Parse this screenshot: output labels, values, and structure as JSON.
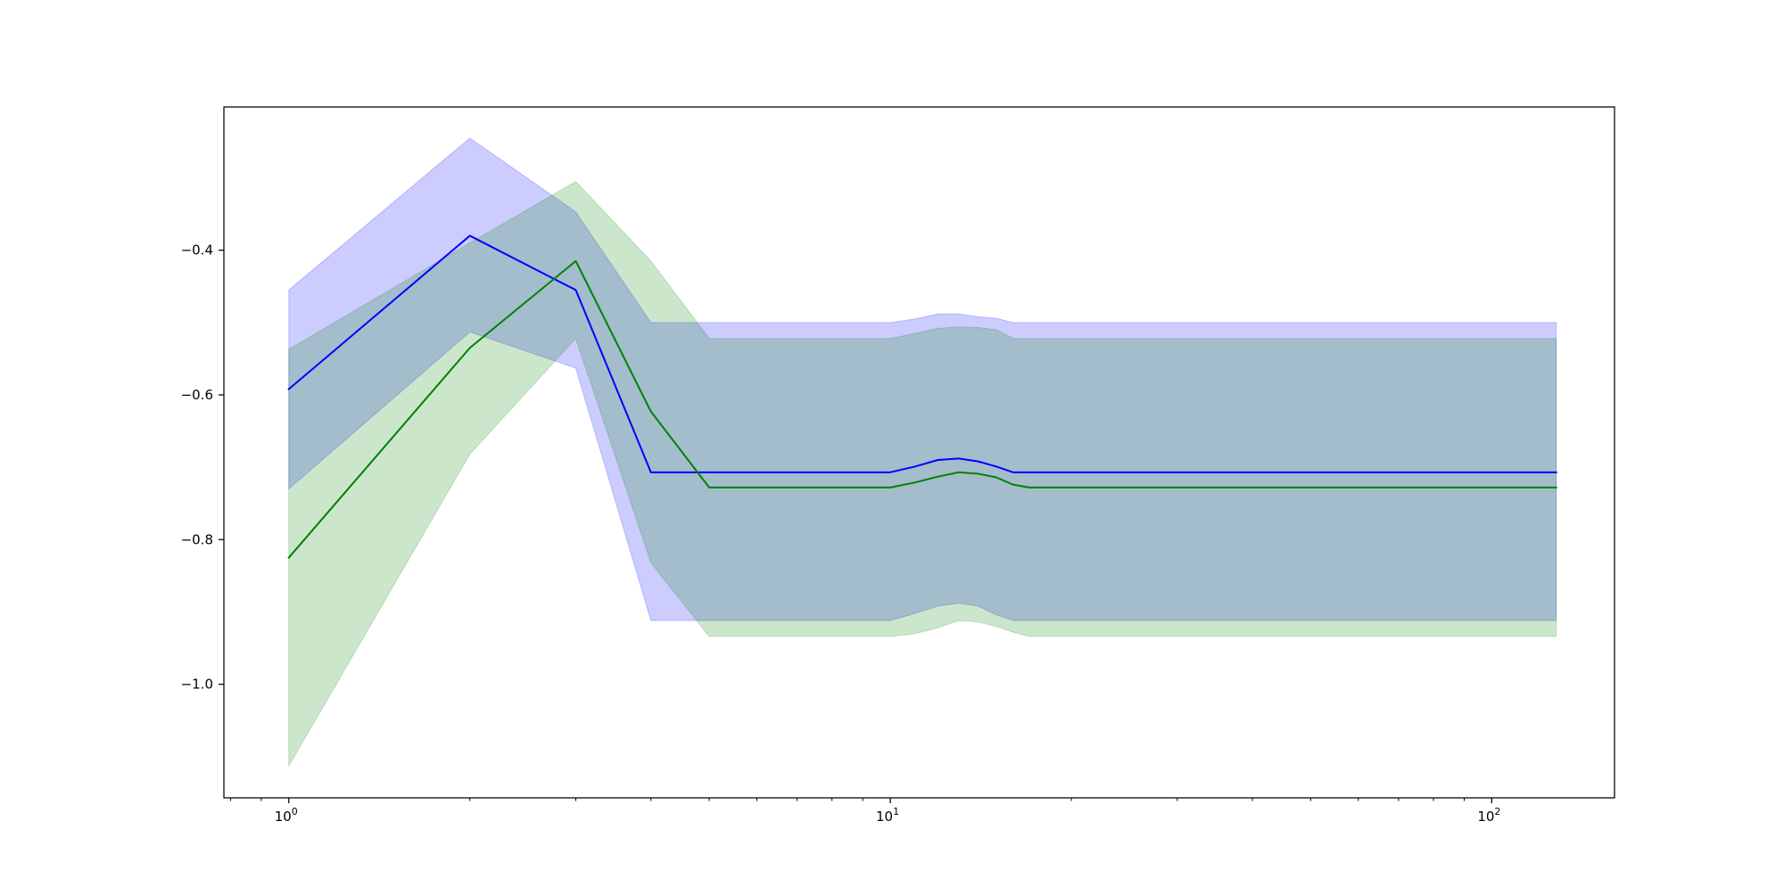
{
  "chart_data": {
    "type": "line",
    "title": "",
    "xlabel": "",
    "ylabel": "",
    "x_scale": "log",
    "xlim": [
      0.78,
      160
    ],
    "ylim": [
      -1.157,
      -0.202
    ],
    "grid": false,
    "x_ticks": [
      {
        "value": 1,
        "label": "10",
        "exp": "0"
      },
      {
        "value": 10,
        "label": "10",
        "exp": "1"
      },
      {
        "value": 100,
        "label": "10",
        "exp": "2"
      }
    ],
    "y_ticks": [
      {
        "value": -0.4,
        "label": "−0.4"
      },
      {
        "value": -0.6,
        "label": "−0.6"
      },
      {
        "value": -0.8,
        "label": "−0.8"
      },
      {
        "value": -1.0,
        "label": "−1.0"
      }
    ],
    "x": [
      1,
      2,
      3,
      4,
      5,
      10,
      11,
      12,
      13,
      14,
      15,
      16,
      17,
      128
    ],
    "series": [
      {
        "color": "#0000ff",
        "band_color": "#0000ff",
        "band_opacity": 0.2,
        "mean": [
          -0.592,
          -0.38,
          -0.455,
          -0.707,
          -0.707,
          -0.707,
          -0.699,
          -0.69,
          -0.688,
          -0.692,
          -0.699,
          -0.707,
          -0.707,
          -0.707
        ],
        "upper": [
          -0.455,
          -0.245,
          -0.347,
          -0.5,
          -0.5,
          -0.5,
          -0.495,
          -0.488,
          -0.488,
          -0.492,
          -0.494,
          -0.5,
          -0.5,
          -0.5
        ],
        "lower": [
          -0.73,
          -0.513,
          -0.563,
          -0.912,
          -0.912,
          -0.912,
          -0.902,
          -0.892,
          -0.888,
          -0.892,
          -0.904,
          -0.912,
          -0.912,
          -0.912
        ]
      },
      {
        "color": "#008000",
        "band_color": "#008000",
        "band_opacity": 0.2,
        "mean": [
          -0.825,
          -0.535,
          -0.415,
          -0.623,
          -0.728,
          -0.728,
          -0.721,
          -0.713,
          -0.707,
          -0.709,
          -0.714,
          -0.724,
          -0.728,
          -0.728
        ],
        "upper": [
          -0.537,
          -0.39,
          -0.305,
          -0.415,
          -0.522,
          -0.522,
          -0.515,
          -0.508,
          -0.506,
          -0.507,
          -0.51,
          -0.522,
          -0.522,
          -0.522
        ],
        "lower": [
          -1.113,
          -0.682,
          -0.522,
          -0.832,
          -0.934,
          -0.934,
          -0.93,
          -0.922,
          -0.912,
          -0.914,
          -0.92,
          -0.928,
          -0.934,
          -0.934
        ]
      }
    ]
  }
}
